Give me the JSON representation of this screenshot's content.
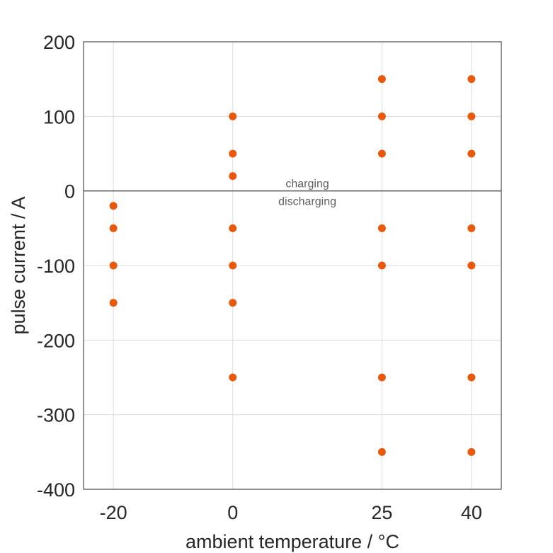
{
  "chart_data": {
    "type": "scatter",
    "xlabel": "ambient temperature / °C",
    "ylabel": "pulse current / A",
    "x_ticks": [
      -20,
      0,
      25,
      40
    ],
    "y_ticks": [
      200,
      100,
      0,
      -100,
      -200,
      -300,
      -400
    ],
    "xlim": [
      -25,
      45
    ],
    "ylim": [
      -400,
      200
    ],
    "grid": true,
    "marker_color": "#E8590C",
    "zero_line_color": "#555555",
    "annotations": {
      "above": "charging",
      "below": "discharging"
    },
    "annotation_x": 12.5,
    "points": [
      {
        "x": -20,
        "y": -20
      },
      {
        "x": -20,
        "y": -50
      },
      {
        "x": -20,
        "y": -100
      },
      {
        "x": -20,
        "y": -150
      },
      {
        "x": 0,
        "y": 100
      },
      {
        "x": 0,
        "y": 50
      },
      {
        "x": 0,
        "y": 20
      },
      {
        "x": 0,
        "y": -50
      },
      {
        "x": 0,
        "y": -100
      },
      {
        "x": 0,
        "y": -150
      },
      {
        "x": 0,
        "y": -250
      },
      {
        "x": 25,
        "y": 150
      },
      {
        "x": 25,
        "y": 100
      },
      {
        "x": 25,
        "y": 50
      },
      {
        "x": 25,
        "y": -50
      },
      {
        "x": 25,
        "y": -100
      },
      {
        "x": 25,
        "y": -250
      },
      {
        "x": 25,
        "y": -350
      },
      {
        "x": 40,
        "y": 150
      },
      {
        "x": 40,
        "y": 100
      },
      {
        "x": 40,
        "y": 50
      },
      {
        "x": 40,
        "y": -50
      },
      {
        "x": 40,
        "y": -100
      },
      {
        "x": 40,
        "y": -250
      },
      {
        "x": 40,
        "y": -350
      }
    ]
  }
}
